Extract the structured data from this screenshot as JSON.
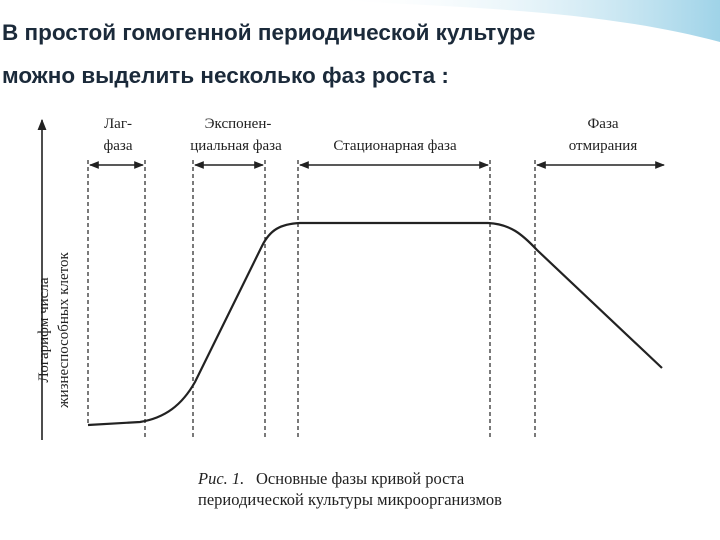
{
  "header": {
    "title_lines": [
      "В простой гомогенной периодической культуре",
      "можно выделить несколько фаз роста :"
    ]
  },
  "figure": {
    "y_axis_label": [
      "Логарифм числа",
      "жизнеспособных клеток"
    ],
    "phases": [
      {
        "label": [
          "Лаг-",
          "фаза"
        ]
      },
      {
        "label": [
          "Экспонен-",
          "циальная фаза"
        ]
      },
      {
        "label": [
          "Стационарная фаза"
        ]
      },
      {
        "label": [
          "Фаза",
          "отмирания"
        ]
      }
    ],
    "caption": {
      "number": "Рис. 1.",
      "lines": [
        "Основные фазы кривой роста",
        "периодической культуры микроорганизмов"
      ]
    }
  }
}
